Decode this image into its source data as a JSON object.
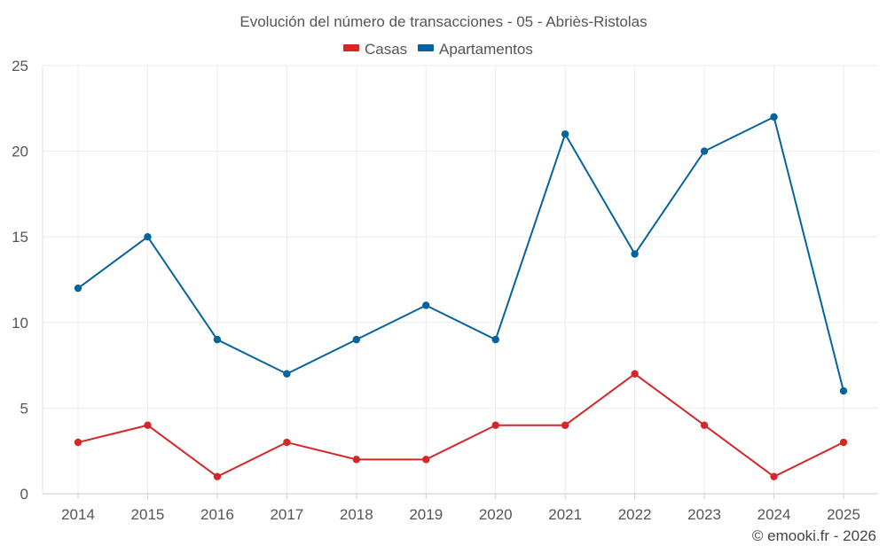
{
  "chart_data": {
    "type": "line",
    "title": "Evolución del número de transacciones - 05 - Abriès-Ristolas",
    "categories": [
      "2014",
      "2015",
      "2016",
      "2017",
      "2018",
      "2019",
      "2020",
      "2021",
      "2022",
      "2023",
      "2024",
      "2025"
    ],
    "series": [
      {
        "name": "Casas",
        "color": "#d62728",
        "values": [
          3,
          4,
          1,
          3,
          2,
          2,
          4,
          4,
          7,
          4,
          1,
          3
        ]
      },
      {
        "name": "Apartamentos",
        "color": "#06639c",
        "values": [
          12,
          15,
          9,
          7,
          9,
          11,
          9,
          21,
          14,
          20,
          22,
          6
        ]
      }
    ],
    "ylim": [
      0,
      25
    ],
    "yticks": [
      0,
      5,
      10,
      15,
      20,
      25
    ],
    "xlabel": "",
    "ylabel": "",
    "grid": true,
    "legend_position": "top-center"
  },
  "footer": "© emooki.fr - 2026"
}
